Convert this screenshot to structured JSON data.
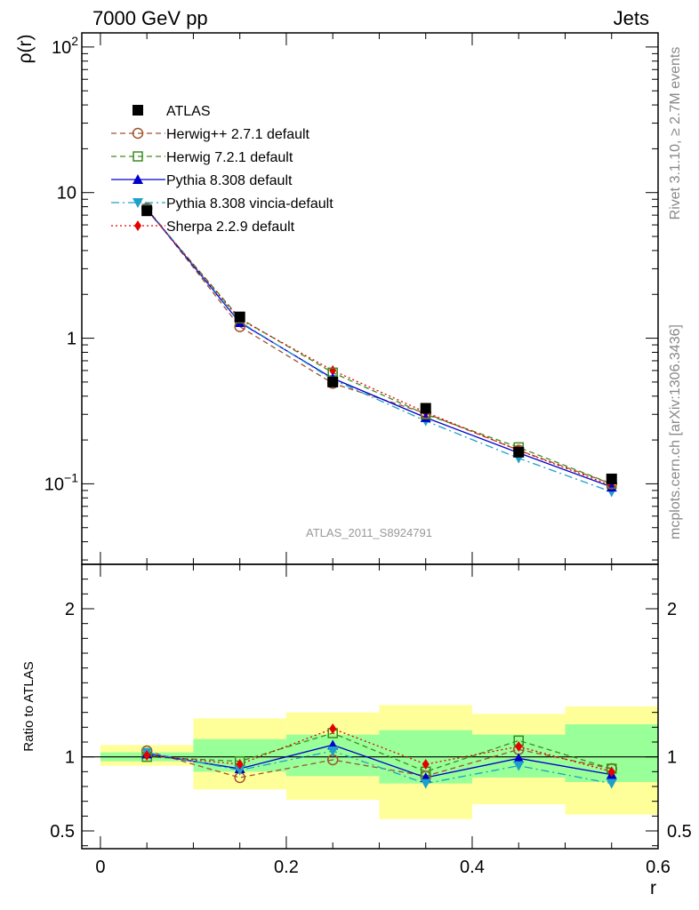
{
  "header": {
    "energy_label": "7000 GeV pp",
    "process_label": "Jets"
  },
  "side_labels": {
    "rivet": "Rivet 3.1.10, ≥ 2.7M events",
    "mcplots": "mcplots.cern.ch [arXiv:1306.3436]"
  },
  "analysis_tag": "ATLAS_2011_S8924791",
  "chart_data": [
    {
      "panel": "main",
      "type": "line",
      "ylabel": "ρ(r)",
      "yscale": "log",
      "ylim": [
        0.028,
        125
      ],
      "xlim": [
        -0.02,
        0.6
      ],
      "y_ticks": [
        {
          "value": 100,
          "label": "10",
          "exp": "2"
        },
        {
          "value": 10,
          "label": "10",
          "exp": ""
        },
        {
          "value": 1,
          "label": "1",
          "exp": ""
        },
        {
          "value": 0.1,
          "label": "10",
          "exp": "−1"
        }
      ],
      "x": [
        0.05,
        0.15,
        0.25,
        0.35,
        0.45,
        0.55
      ],
      "series": [
        {
          "name": "ATLAS",
          "color": "#000000",
          "style": "data",
          "marker": "square-filled",
          "values": [
            7.5,
            1.4,
            0.5,
            0.33,
            0.165,
            0.108
          ]
        },
        {
          "name": "Herwig++ 2.7.1 default",
          "color": "#a0522d",
          "style": "dashed",
          "marker": "circle-open",
          "values": [
            7.8,
            1.2,
            0.49,
            0.305,
            0.17,
            0.1
          ]
        },
        {
          "name": "Herwig 7.2.1 default",
          "color": "#3c8c1e",
          "style": "dashed",
          "marker": "square-open",
          "values": [
            7.6,
            1.37,
            0.58,
            0.3,
            0.178,
            0.1
          ]
        },
        {
          "name": "Pythia 8.308 default",
          "color": "#0000cc",
          "style": "solid",
          "marker": "triangle-up",
          "values": [
            7.7,
            1.28,
            0.53,
            0.285,
            0.163,
            0.095
          ]
        },
        {
          "name": "Pythia 8.308 vincia-default",
          "color": "#1fa0c8",
          "style": "dashdot",
          "marker": "triangle-down",
          "values": [
            7.8,
            1.3,
            0.52,
            0.27,
            0.15,
            0.088
          ]
        },
        {
          "name": "Sherpa 2.2.9 default",
          "color": "#e60000",
          "style": "dotted",
          "marker": "diamond",
          "values": [
            7.6,
            1.35,
            0.6,
            0.31,
            0.17,
            0.097
          ]
        }
      ]
    },
    {
      "panel": "ratio",
      "type": "line",
      "ylabel": "Ratio to ATLAS",
      "xlabel": "r",
      "ylim": [
        0.38,
        2.3
      ],
      "xlim": [
        -0.02,
        0.6
      ],
      "x_ticks": [
        {
          "value": 0,
          "label": "0"
        },
        {
          "value": 0.2,
          "label": "0.2"
        },
        {
          "value": 0.4,
          "label": "0.4"
        },
        {
          "value": 0.6,
          "label": "0.6"
        }
      ],
      "y_ticks": [
        {
          "value": 0.5,
          "label": "0.5"
        },
        {
          "value": 1,
          "label": "1"
        },
        {
          "value": 2,
          "label": "2"
        }
      ],
      "bands": {
        "bins": [
          [
            0,
            0.1
          ],
          [
            0.1,
            0.2
          ],
          [
            0.2,
            0.3
          ],
          [
            0.3,
            0.4
          ],
          [
            0.4,
            0.5
          ],
          [
            0.5,
            0.6
          ]
        ],
        "stat_lo": [
          0.97,
          0.9,
          0.87,
          0.82,
          0.86,
          0.83
        ],
        "stat_hi": [
          1.03,
          1.12,
          1.15,
          1.18,
          1.15,
          1.22
        ],
        "total_lo": [
          0.94,
          0.78,
          0.71,
          0.58,
          0.68,
          0.61
        ],
        "total_hi": [
          1.08,
          1.26,
          1.3,
          1.35,
          1.29,
          1.34
        ],
        "stat_color": "#99ff99",
        "total_color": "#ffff99"
      },
      "x": [
        0.05,
        0.15,
        0.25,
        0.35,
        0.45,
        0.55
      ],
      "series": [
        {
          "name": "Herwig++ 2.7.1 default",
          "color": "#a0522d",
          "style": "dashed",
          "marker": "circle-open",
          "values": [
            1.04,
            0.86,
            0.98,
            0.87,
            1.05,
            0.92
          ]
        },
        {
          "name": "Herwig 7.2.1 default",
          "color": "#3c8c1e",
          "style": "dashed",
          "marker": "square-open",
          "values": [
            1.0,
            0.97,
            1.16,
            0.9,
            1.11,
            0.92
          ]
        },
        {
          "name": "Pythia 8.308 default",
          "color": "#0000cc",
          "style": "solid",
          "marker": "triangle-up",
          "values": [
            1.02,
            0.92,
            1.08,
            0.86,
            0.99,
            0.88
          ]
        },
        {
          "name": "Pythia 8.308 vincia-default",
          "color": "#1fa0c8",
          "style": "dashdot",
          "marker": "triangle-down",
          "values": [
            1.03,
            0.91,
            1.04,
            0.82,
            0.94,
            0.82
          ]
        },
        {
          "name": "Sherpa 2.2.9 default",
          "color": "#e60000",
          "style": "dotted",
          "marker": "diamond",
          "values": [
            1.01,
            0.95,
            1.19,
            0.95,
            1.07,
            0.9
          ]
        }
      ]
    }
  ]
}
